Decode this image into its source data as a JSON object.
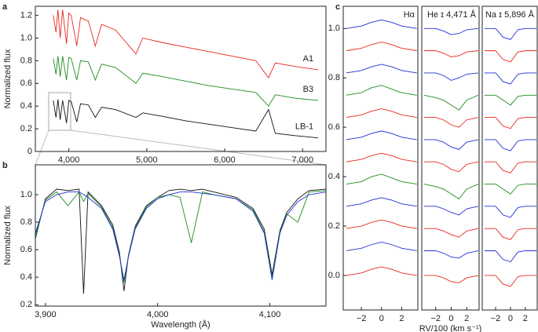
{
  "chart_data": [
    {
      "type": "line",
      "panel_label": "a",
      "ylabel": "Normalized flux",
      "xlim": [
        3570,
        7300
      ],
      "ylim": [
        0,
        1.28
      ],
      "xticks": [
        {
          "value": 4000,
          "label": "4,000"
        },
        {
          "value": 5000,
          "label": "5,000"
        },
        {
          "value": 6000,
          "label": "6,000"
        },
        {
          "value": 7000,
          "label": "7,000"
        }
      ],
      "yticks": [
        0,
        0.2,
        0.4,
        0.6,
        0.8,
        {
          "value": 1,
          "label": "1.0"
        },
        1.2
      ],
      "x": [
        3800,
        3835,
        3860,
        3889,
        3920,
        3970,
        4000,
        4030,
        4102,
        4150,
        4250,
        4340,
        4420,
        4600,
        4861,
        4950,
        5200,
        5500,
        5800,
        6100,
        6400,
        6563,
        6650,
        6900,
        7200
      ],
      "series": [
        {
          "name": "A1",
          "color": "#e8271f",
          "values": [
            1.2,
            1.05,
            1.25,
            1.0,
            1.25,
            0.95,
            1.22,
            1.2,
            0.93,
            1.18,
            1.15,
            0.93,
            1.12,
            1.07,
            0.86,
            1.0,
            0.96,
            0.92,
            0.88,
            0.84,
            0.8,
            0.65,
            0.78,
            0.75,
            0.72
          ]
        },
        {
          "name": "B3",
          "color": "#1e8c1e",
          "values": [
            0.82,
            0.68,
            0.84,
            0.66,
            0.84,
            0.63,
            0.83,
            0.82,
            0.63,
            0.8,
            0.79,
            0.63,
            0.77,
            0.74,
            0.6,
            0.69,
            0.66,
            0.62,
            0.58,
            0.55,
            0.52,
            0.4,
            0.5,
            0.47,
            0.45
          ]
        },
        {
          "name": "LB-1",
          "color": "#111111",
          "values": [
            0.45,
            0.3,
            0.46,
            0.28,
            0.45,
            0.25,
            0.45,
            0.44,
            0.26,
            0.42,
            0.41,
            0.3,
            0.39,
            0.37,
            0.3,
            0.34,
            0.31,
            0.27,
            0.24,
            0.21,
            0.18,
            0.37,
            0.16,
            0.14,
            0.12
          ]
        }
      ]
    },
    {
      "type": "line",
      "panel_label": "b",
      "ylabel": "Normalized flux",
      "xlabel": "Wavelength (Å)",
      "xlim": [
        3891,
        4150
      ],
      "ylim": [
        0.19,
        1.217
      ],
      "xticks": [
        {
          "value": 3900,
          "label": "3,900"
        },
        {
          "value": 4000,
          "label": "4,000"
        },
        {
          "value": 4100,
          "label": "4,100"
        }
      ],
      "yticks": [
        0.2,
        0.4,
        0.6,
        0.8,
        {
          "value": 1,
          "label": "1.0"
        }
      ],
      "x": [
        3891,
        3900,
        3910,
        3920,
        3930,
        3934,
        3938,
        3950,
        3960,
        3966,
        3970,
        3974,
        3980,
        3990,
        4000,
        4010,
        4020,
        4030,
        4040,
        4050,
        4070,
        4085,
        4095,
        4102,
        4109,
        4115,
        4125,
        4135,
        4150
      ],
      "series": [
        {
          "color": "#111111",
          "values": [
            0.68,
            0.97,
            1.04,
            1.03,
            1.04,
            0.28,
            1.02,
            0.92,
            0.78,
            0.58,
            0.3,
            0.56,
            0.77,
            0.92,
            0.98,
            1.03,
            1.04,
            1.03,
            1.04,
            1.02,
            0.98,
            0.9,
            0.75,
            0.42,
            0.74,
            0.87,
            0.97,
            1.03,
            1.04
          ]
        },
        {
          "color": "#1e8c1e",
          "values": [
            0.7,
            0.96,
            1.02,
            0.92,
            1.02,
            0.95,
            1.01,
            0.91,
            0.76,
            0.56,
            0.36,
            0.55,
            0.76,
            0.91,
            0.98,
            1.0,
            0.98,
            0.65,
            1.02,
            1.0,
            0.97,
            0.89,
            0.73,
            0.4,
            0.73,
            0.86,
            0.8,
            1.02,
            1.03
          ]
        },
        {
          "color": "#1f2fd6",
          "values": [
            0.72,
            0.95,
            1.0,
            1.02,
            1.02,
            1.0,
            0.98,
            0.9,
            0.75,
            0.55,
            0.38,
            0.55,
            0.75,
            0.9,
            0.97,
            1.0,
            1.02,
            1.02,
            1.01,
            1.0,
            0.97,
            0.88,
            0.72,
            0.38,
            0.72,
            0.85,
            0.95,
            1.0,
            1.02
          ]
        }
      ]
    },
    {
      "type": "line",
      "panel_label": "c",
      "title": "Hα",
      "xlim": [
        -3.8,
        3.6
      ],
      "ylim": [
        -0.14,
        1.09
      ],
      "xticks": [
        {
          "value": -2,
          "label": "−2"
        },
        0,
        2
      ],
      "yticks": [
        {
          "value": 0,
          "label": "0.0"
        },
        0.2,
        0.4,
        0.6,
        0.8,
        {
          "value": 1,
          "label": "1.0"
        }
      ],
      "x": [
        -3.5,
        -2,
        -1,
        0,
        1,
        2,
        3.5
      ],
      "series": [
        {
          "color": "#1f2fd6",
          "values": [
            1.0,
            1.01,
            1.025,
            1.035,
            1.025,
            1.01,
            1.0
          ]
        },
        {
          "color": "#e8271f",
          "values": [
            0.91,
            0.92,
            0.935,
            0.945,
            0.935,
            0.92,
            0.91
          ]
        },
        {
          "color": "#1f2fd6",
          "values": [
            0.82,
            0.83,
            0.845,
            0.855,
            0.845,
            0.83,
            0.82
          ]
        },
        {
          "color": "#1e8c1e",
          "values": [
            0.73,
            0.74,
            0.76,
            0.77,
            0.755,
            0.74,
            0.73
          ]
        },
        {
          "color": "#e8271f",
          "values": [
            0.64,
            0.65,
            0.665,
            0.675,
            0.665,
            0.65,
            0.64
          ]
        },
        {
          "color": "#1f2fd6",
          "values": [
            0.55,
            0.56,
            0.575,
            0.585,
            0.575,
            0.56,
            0.55
          ]
        },
        {
          "color": "#e8271f",
          "values": [
            0.46,
            0.47,
            0.485,
            0.495,
            0.485,
            0.47,
            0.46
          ]
        },
        {
          "color": "#1e8c1e",
          "values": [
            0.37,
            0.38,
            0.4,
            0.41,
            0.395,
            0.38,
            0.37
          ]
        },
        {
          "color": "#1f2fd6",
          "values": [
            0.28,
            0.29,
            0.305,
            0.315,
            0.305,
            0.29,
            0.28
          ]
        },
        {
          "color": "#e8271f",
          "values": [
            0.19,
            0.2,
            0.215,
            0.225,
            0.215,
            0.2,
            0.19
          ]
        },
        {
          "color": "#1f2fd6",
          "values": [
            0.1,
            0.11,
            0.125,
            0.135,
            0.125,
            0.11,
            0.1
          ]
        },
        {
          "color": "#e8271f",
          "values": [
            0.0,
            0.01,
            0.025,
            0.035,
            0.025,
            0.01,
            0.0
          ]
        }
      ]
    },
    {
      "type": "line",
      "title": "He ɪ 4,471 Å",
      "xlabel": "RV/100 (km s⁻¹)",
      "xlim": [
        -3.8,
        3.6
      ],
      "ylim": [
        -0.14,
        1.09
      ],
      "xticks": [
        {
          "value": -2,
          "label": "−2"
        },
        0,
        2
      ],
      "x": [
        -3.5,
        -2,
        -1,
        0,
        1,
        2,
        3.5
      ],
      "series": [
        {
          "color": "#1f2fd6",
          "values": [
            1.0,
            1.0,
            0.99,
            0.975,
            0.98,
            0.995,
            1.0
          ]
        },
        {
          "color": "#e8271f",
          "values": [
            0.91,
            0.91,
            0.9,
            0.885,
            0.89,
            0.905,
            0.91
          ]
        },
        {
          "color": "#1f2fd6",
          "values": [
            0.82,
            0.82,
            0.81,
            0.79,
            0.8,
            0.815,
            0.82
          ]
        },
        {
          "color": "#1e8c1e",
          "values": [
            0.73,
            0.72,
            0.71,
            0.69,
            0.67,
            0.71,
            0.73
          ]
        },
        {
          "color": "#e8271f",
          "values": [
            0.64,
            0.64,
            0.63,
            0.61,
            0.6,
            0.63,
            0.64
          ]
        },
        {
          "color": "#1f2fd6",
          "values": [
            0.55,
            0.55,
            0.54,
            0.52,
            0.51,
            0.54,
            0.55
          ]
        },
        {
          "color": "#e8271f",
          "values": [
            0.46,
            0.46,
            0.45,
            0.43,
            0.42,
            0.45,
            0.46
          ]
        },
        {
          "color": "#1e8c1e",
          "values": [
            0.37,
            0.36,
            0.35,
            0.33,
            0.31,
            0.35,
            0.37
          ]
        },
        {
          "color": "#1f2fd6",
          "values": [
            0.28,
            0.28,
            0.27,
            0.255,
            0.245,
            0.27,
            0.28
          ]
        },
        {
          "color": "#e8271f",
          "values": [
            0.19,
            0.19,
            0.18,
            0.165,
            0.155,
            0.18,
            0.19
          ]
        },
        {
          "color": "#1f2fd6",
          "values": [
            0.1,
            0.1,
            0.09,
            0.075,
            0.07,
            0.09,
            0.1
          ]
        },
        {
          "color": "#e8271f",
          "values": [
            0.0,
            0.0,
            -0.01,
            -0.025,
            -0.03,
            -0.01,
            0.0
          ]
        }
      ]
    },
    {
      "type": "line",
      "title": "Na ɪ 5,896 Å",
      "xlim": [
        -3.8,
        3.6
      ],
      "ylim": [
        -0.14,
        1.09
      ],
      "xticks": [
        {
          "value": -2,
          "label": "−2"
        },
        0,
        2
      ],
      "x": [
        -3.5,
        -2,
        -1,
        0,
        1,
        2,
        3.5
      ],
      "series": [
        {
          "color": "#1f2fd6",
          "values": [
            1.0,
            1.0,
            0.965,
            0.955,
            0.995,
            1.0,
            1.0
          ]
        },
        {
          "color": "#e8271f",
          "values": [
            0.91,
            0.91,
            0.875,
            0.865,
            0.905,
            0.91,
            0.91
          ]
        },
        {
          "color": "#1f2fd6",
          "values": [
            0.82,
            0.82,
            0.785,
            0.775,
            0.815,
            0.82,
            0.82
          ]
        },
        {
          "color": "#1e8c1e",
          "values": [
            0.73,
            0.73,
            0.71,
            0.69,
            0.725,
            0.73,
            0.73
          ]
        },
        {
          "color": "#e8271f",
          "values": [
            0.64,
            0.64,
            0.605,
            0.595,
            0.635,
            0.64,
            0.64
          ]
        },
        {
          "color": "#1f2fd6",
          "values": [
            0.55,
            0.55,
            0.515,
            0.505,
            0.545,
            0.55,
            0.55
          ]
        },
        {
          "color": "#e8271f",
          "values": [
            0.46,
            0.46,
            0.425,
            0.415,
            0.455,
            0.46,
            0.46
          ]
        },
        {
          "color": "#1e8c1e",
          "values": [
            0.37,
            0.37,
            0.35,
            0.33,
            0.365,
            0.37,
            0.37
          ]
        },
        {
          "color": "#1f2fd6",
          "values": [
            0.28,
            0.28,
            0.245,
            0.235,
            0.275,
            0.28,
            0.28
          ]
        },
        {
          "color": "#e8271f",
          "values": [
            0.19,
            0.19,
            0.155,
            0.145,
            0.185,
            0.19,
            0.19
          ]
        },
        {
          "color": "#1f2fd6",
          "values": [
            0.1,
            0.1,
            0.065,
            0.055,
            0.095,
            0.1,
            0.1
          ]
        },
        {
          "color": "#e8271f",
          "values": [
            0.0,
            0.0,
            -0.035,
            -0.045,
            -0.005,
            0.0,
            0.0
          ]
        }
      ]
    }
  ]
}
